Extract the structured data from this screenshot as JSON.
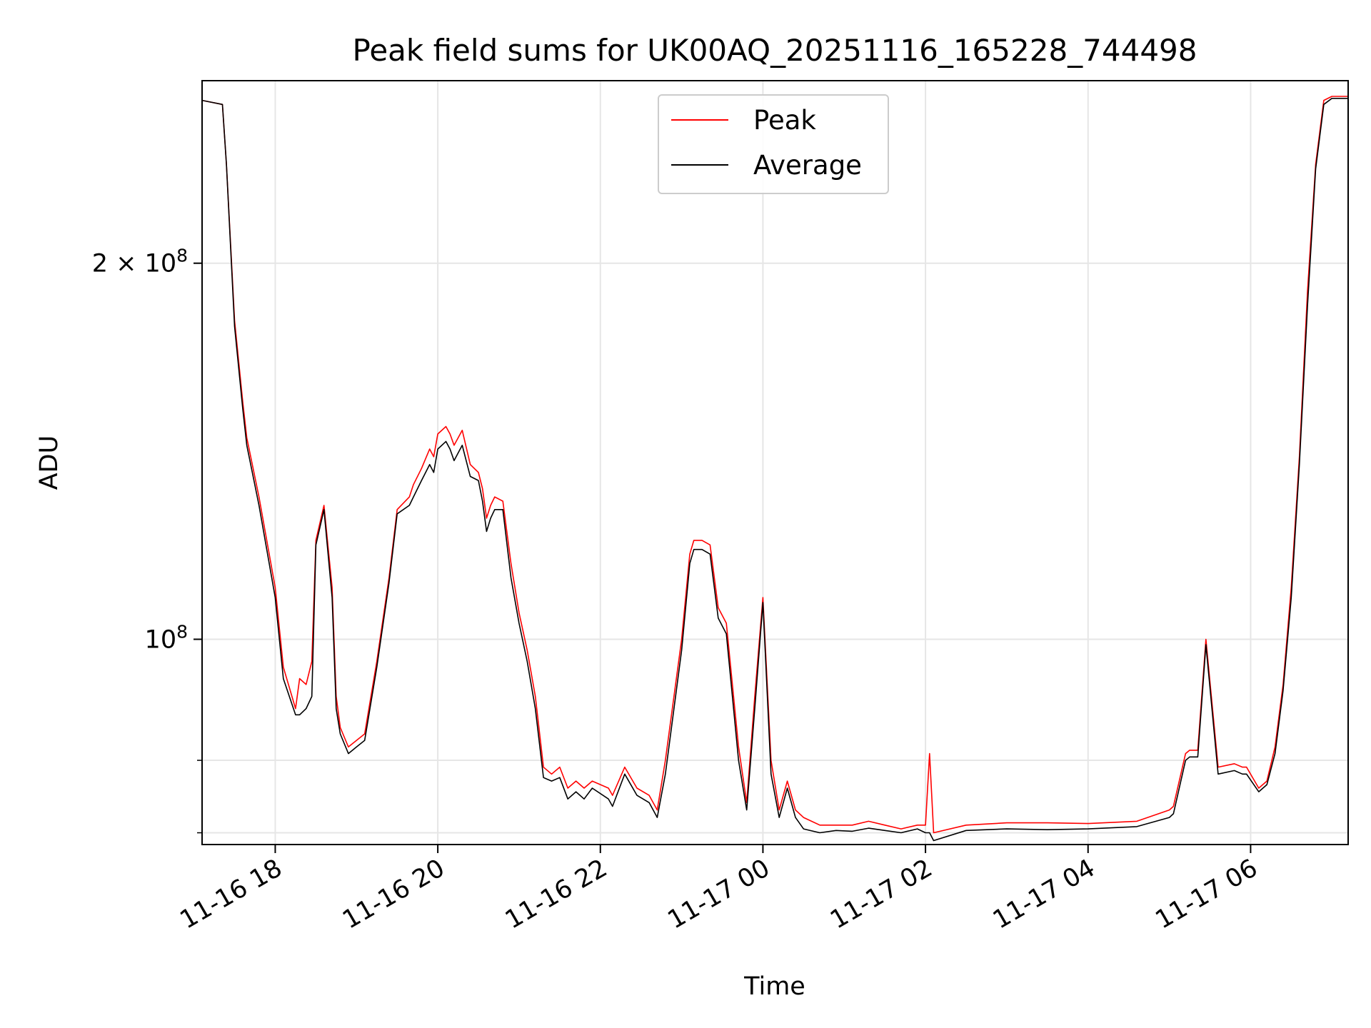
{
  "chart_data": {
    "type": "line",
    "title": "Peak field sums for UK00AQ_20251116_165228_744498",
    "xlabel": "Time",
    "ylabel": "ADU",
    "y_scale": "log",
    "ylim": [
      68500000,
      280000000
    ],
    "xlim_hours": [
      -6.9,
      7.2
    ],
    "grid": true,
    "legend_position": "top-center",
    "x_tick_labels": [
      {
        "label": "11-16 18",
        "hours_from_1117_00": -6
      },
      {
        "label": "11-16 20",
        "hours_from_1117_00": -4
      },
      {
        "label": "11-16 22",
        "hours_from_1117_00": -2
      },
      {
        "label": "11-17 00",
        "hours_from_1117_00": 0
      },
      {
        "label": "11-17 02",
        "hours_from_1117_00": 2
      },
      {
        "label": "11-17 04",
        "hours_from_1117_00": 4
      },
      {
        "label": "11-17 06",
        "hours_from_1117_00": 6
      }
    ],
    "y_tick_labels": [
      {
        "base": "2 × 10",
        "exp": "8",
        "value": 200000000
      },
      {
        "base": "10",
        "exp": "8",
        "value": 100000000
      }
    ],
    "y_minor_ticks": [
      70000000,
      80000000
    ],
    "series": [
      {
        "name": "Peak",
        "color": "#ff0000",
        "x_hours": [
          -6.9,
          -6.65,
          -6.6,
          -6.5,
          -6.4,
          -6.35,
          -6.2,
          -6.0,
          -5.9,
          -5.75,
          -5.7,
          -5.62,
          -5.55,
          -5.5,
          -5.4,
          -5.3,
          -5.25,
          -5.2,
          -5.1,
          -5.0,
          -4.9,
          -4.75,
          -4.6,
          -4.5,
          -4.35,
          -4.3,
          -4.2,
          -4.1,
          -4.05,
          -4.0,
          -3.9,
          -3.85,
          -3.8,
          -3.7,
          -3.6,
          -3.5,
          -3.45,
          -3.4,
          -3.35,
          -3.3,
          -3.2,
          -3.1,
          -3.0,
          -2.9,
          -2.8,
          -2.7,
          -2.6,
          -2.5,
          -2.4,
          -2.3,
          -2.2,
          -2.1,
          -1.9,
          -1.85,
          -1.7,
          -1.55,
          -1.4,
          -1.3,
          -1.2,
          -1.0,
          -0.9,
          -0.85,
          -0.75,
          -0.65,
          -0.55,
          -0.45,
          -0.3,
          -0.2,
          -0.1,
          0.0,
          0.1,
          0.2,
          0.3,
          0.4,
          0.5,
          0.7,
          0.9,
          1.1,
          1.3,
          1.5,
          1.7,
          1.9,
          2.0,
          2.05,
          2.1,
          2.5,
          3.0,
          3.5,
          4.0,
          4.6,
          5.0,
          5.05,
          5.2,
          5.25,
          5.35,
          5.45,
          5.6,
          5.8,
          5.9,
          5.95,
          6.1,
          6.2,
          6.3,
          6.4,
          6.5,
          6.6,
          6.7,
          6.8,
          6.9,
          7.0,
          7.2
        ],
        "values": [
          270000000,
          268000000,
          240000000,
          180000000,
          155000000,
          145000000,
          130000000,
          110000000,
          95000000,
          88000000,
          93000000,
          92000000,
          96000000,
          120000000,
          128000000,
          110000000,
          90000000,
          85000000,
          82000000,
          83000000,
          84000000,
          96000000,
          112000000,
          127000000,
          130000000,
          133000000,
          137000000,
          142000000,
          140000000,
          146000000,
          148000000,
          146000000,
          143000000,
          147000000,
          138000000,
          136000000,
          132000000,
          125000000,
          128000000,
          130000000,
          129000000,
          115000000,
          105000000,
          98000000,
          90000000,
          79000000,
          78000000,
          79000000,
          76000000,
          77000000,
          76000000,
          77000000,
          76000000,
          75000000,
          79000000,
          76000000,
          75000000,
          73000000,
          80000000,
          100000000,
          117000000,
          120000000,
          120000000,
          119000000,
          106000000,
          103000000,
          82000000,
          74000000,
          90000000,
          108000000,
          80000000,
          73000000,
          77000000,
          73000000,
          72000000,
          71000000,
          71000000,
          71000000,
          71500000,
          71000000,
          70500000,
          71000000,
          71000000,
          81000000,
          70000000,
          71000000,
          71300000,
          71300000,
          71200000,
          71500000,
          73000000,
          73500000,
          81000000,
          81500000,
          81500000,
          100000000,
          79000000,
          79500000,
          79000000,
          79000000,
          76000000,
          77000000,
          82000000,
          92000000,
          110000000,
          140000000,
          190000000,
          240000000,
          270000000,
          272000000,
          272000000
        ]
      },
      {
        "name": "Average",
        "color": "#000000",
        "x_hours": [
          -6.9,
          -6.65,
          -6.6,
          -6.5,
          -6.4,
          -6.35,
          -6.2,
          -6.0,
          -5.9,
          -5.75,
          -5.7,
          -5.62,
          -5.55,
          -5.5,
          -5.4,
          -5.3,
          -5.25,
          -5.2,
          -5.1,
          -5.0,
          -4.9,
          -4.75,
          -4.6,
          -4.5,
          -4.35,
          -4.3,
          -4.2,
          -4.1,
          -4.05,
          -4.0,
          -3.9,
          -3.85,
          -3.8,
          -3.7,
          -3.6,
          -3.5,
          -3.45,
          -3.4,
          -3.35,
          -3.3,
          -3.2,
          -3.1,
          -3.0,
          -2.9,
          -2.8,
          -2.7,
          -2.6,
          -2.5,
          -2.4,
          -2.3,
          -2.2,
          -2.1,
          -1.9,
          -1.85,
          -1.7,
          -1.55,
          -1.4,
          -1.3,
          -1.2,
          -1.0,
          -0.9,
          -0.85,
          -0.75,
          -0.65,
          -0.55,
          -0.45,
          -0.3,
          -0.2,
          -0.1,
          0.0,
          0.1,
          0.2,
          0.3,
          0.4,
          0.5,
          0.7,
          0.9,
          1.1,
          1.3,
          1.5,
          1.7,
          1.9,
          2.0,
          2.05,
          2.1,
          2.5,
          3.0,
          3.5,
          4.0,
          4.6,
          5.0,
          5.05,
          5.2,
          5.25,
          5.35,
          5.45,
          5.6,
          5.8,
          5.9,
          5.95,
          6.1,
          6.2,
          6.3,
          6.4,
          6.5,
          6.6,
          6.7,
          6.8,
          6.9,
          7.0,
          7.2
        ],
        "values": [
          270000000,
          268000000,
          240000000,
          178000000,
          153000000,
          143000000,
          128000000,
          108000000,
          93000000,
          87000000,
          87000000,
          88000000,
          90000000,
          119000000,
          127000000,
          108000000,
          88000000,
          84000000,
          81000000,
          82000000,
          83000000,
          95000000,
          111000000,
          126000000,
          128000000,
          130000000,
          134000000,
          138000000,
          136000000,
          142000000,
          144000000,
          142000000,
          139000000,
          143000000,
          135000000,
          134000000,
          129000000,
          122000000,
          125000000,
          127000000,
          127000000,
          112000000,
          103000000,
          96000000,
          88000000,
          77500000,
          77000000,
          77500000,
          74500000,
          75500000,
          74500000,
          76000000,
          74500000,
          73500000,
          78000000,
          75000000,
          74000000,
          72000000,
          78000000,
          98000000,
          115000000,
          118000000,
          118000000,
          117000000,
          104000000,
          101000000,
          80000000,
          73000000,
          88000000,
          107000000,
          78000000,
          72000000,
          76000000,
          72000000,
          70500000,
          70000000,
          70300000,
          70200000,
          70600000,
          70300000,
          70000000,
          70500000,
          70000000,
          70000000,
          69000000,
          70300000,
          70500000,
          70400000,
          70500000,
          70800000,
          72000000,
          72500000,
          80000000,
          80500000,
          80500000,
          99000000,
          78000000,
          78500000,
          78000000,
          78000000,
          75500000,
          76500000,
          81000000,
          91000000,
          108000000,
          138000000,
          185000000,
          238000000,
          268000000,
          271000000,
          271000000
        ]
      }
    ]
  }
}
